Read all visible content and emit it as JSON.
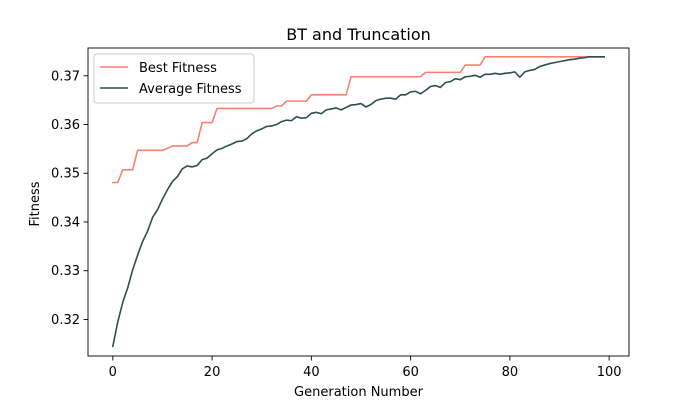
{
  "chart_data": {
    "type": "line",
    "title": "BT and Truncation",
    "xlabel": "Generation Number",
    "ylabel": "Fitness",
    "xlim": [
      -5,
      104
    ],
    "ylim": [
      0.3125,
      0.3757
    ],
    "xticks": [
      0,
      20,
      40,
      60,
      80,
      100
    ],
    "xtick_labels": [
      "0",
      "20",
      "40",
      "60",
      "80",
      "100"
    ],
    "yticks": [
      0.32,
      0.33,
      0.34,
      0.35,
      0.36,
      0.37
    ],
    "ytick_labels": [
      "0.32",
      "0.33",
      "0.34",
      "0.35",
      "0.36",
      "0.37"
    ],
    "grid": false,
    "legend_position": "upper-left",
    "series": [
      {
        "name": "Best Fitness",
        "color": "#fa8072",
        "x": [
          0,
          1,
          2,
          3,
          4,
          5,
          6,
          7,
          8,
          9,
          10,
          11,
          12,
          13,
          14,
          15,
          16,
          17,
          18,
          19,
          20,
          21,
          22,
          23,
          24,
          25,
          26,
          27,
          28,
          29,
          30,
          31,
          32,
          33,
          34,
          35,
          36,
          37,
          38,
          39,
          40,
          41,
          42,
          43,
          44,
          45,
          46,
          47,
          48,
          49,
          50,
          51,
          52,
          53,
          54,
          55,
          56,
          57,
          58,
          59,
          60,
          61,
          62,
          63,
          64,
          65,
          66,
          67,
          68,
          69,
          70,
          71,
          72,
          73,
          74,
          75,
          76,
          77,
          78,
          79,
          80,
          81,
          82,
          83,
          84,
          85,
          86,
          87,
          88,
          89,
          90,
          91,
          92,
          93,
          94,
          95,
          96,
          97,
          98,
          99
        ],
        "values": [
          0.3481,
          0.3481,
          0.3507,
          0.3507,
          0.3507,
          0.3547,
          0.3547,
          0.3547,
          0.3547,
          0.3547,
          0.3547,
          0.3551,
          0.3556,
          0.3556,
          0.3556,
          0.3556,
          0.3563,
          0.3563,
          0.3604,
          0.3604,
          0.3604,
          0.3633,
          0.3633,
          0.3633,
          0.3633,
          0.3633,
          0.3633,
          0.3633,
          0.3633,
          0.3633,
          0.3633,
          0.3633,
          0.3633,
          0.3638,
          0.3638,
          0.3648,
          0.3648,
          0.3648,
          0.3648,
          0.3648,
          0.3661,
          0.3661,
          0.3661,
          0.3661,
          0.3661,
          0.3661,
          0.3661,
          0.3661,
          0.3698,
          0.3698,
          0.3698,
          0.3698,
          0.3698,
          0.3698,
          0.3698,
          0.3698,
          0.3698,
          0.3698,
          0.3698,
          0.3698,
          0.3698,
          0.3698,
          0.3698,
          0.3707,
          0.3707,
          0.3707,
          0.3707,
          0.3707,
          0.3707,
          0.3707,
          0.3707,
          0.3722,
          0.3722,
          0.3722,
          0.3722,
          0.3739,
          0.3739,
          0.3739,
          0.3739,
          0.3739,
          0.3739,
          0.3739,
          0.3739,
          0.3739,
          0.3739,
          0.3739,
          0.3739,
          0.3739,
          0.3739,
          0.3739,
          0.3739,
          0.3739,
          0.3739,
          0.3739,
          0.3739,
          0.3739,
          0.3739,
          0.3739,
          0.3739,
          0.3739
        ]
      },
      {
        "name": "Average Fitness",
        "color": "#2f4f4f",
        "x": [
          0,
          1,
          2,
          3,
          4,
          5,
          6,
          7,
          8,
          9,
          10,
          11,
          12,
          13,
          14,
          15,
          16,
          17,
          18,
          19,
          20,
          21,
          22,
          23,
          24,
          25,
          26,
          27,
          28,
          29,
          30,
          31,
          32,
          33,
          34,
          35,
          36,
          37,
          38,
          39,
          40,
          41,
          42,
          43,
          44,
          45,
          46,
          47,
          48,
          49,
          50,
          51,
          52,
          53,
          54,
          55,
          56,
          57,
          58,
          59,
          60,
          61,
          62,
          63,
          64,
          65,
          66,
          67,
          68,
          69,
          70,
          71,
          72,
          73,
          74,
          75,
          76,
          77,
          78,
          79,
          80,
          81,
          82,
          83,
          84,
          85,
          86,
          87,
          88,
          89,
          90,
          91,
          92,
          93,
          94,
          95,
          96,
          97,
          98,
          99
        ],
        "values": [
          0.3145,
          0.3195,
          0.3235,
          0.3265,
          0.3302,
          0.3332,
          0.336,
          0.3381,
          0.3409,
          0.3425,
          0.3447,
          0.3466,
          0.3483,
          0.3493,
          0.3509,
          0.3515,
          0.3513,
          0.3516,
          0.3528,
          0.3531,
          0.354,
          0.3548,
          0.3551,
          0.3556,
          0.356,
          0.3565,
          0.3566,
          0.3571,
          0.3581,
          0.3587,
          0.3591,
          0.3596,
          0.3597,
          0.36,
          0.3606,
          0.3609,
          0.3608,
          0.3616,
          0.3613,
          0.3614,
          0.3623,
          0.3625,
          0.3622,
          0.363,
          0.3632,
          0.3634,
          0.363,
          0.3635,
          0.364,
          0.3641,
          0.3643,
          0.3636,
          0.3641,
          0.3649,
          0.3652,
          0.3654,
          0.3654,
          0.3652,
          0.3661,
          0.3661,
          0.3667,
          0.3668,
          0.3663,
          0.367,
          0.3678,
          0.368,
          0.3676,
          0.3686,
          0.3688,
          0.3694,
          0.3692,
          0.3698,
          0.3699,
          0.3701,
          0.3697,
          0.3703,
          0.3703,
          0.3705,
          0.3703,
          0.3705,
          0.3706,
          0.3708,
          0.3697,
          0.3708,
          0.3711,
          0.3713,
          0.3719,
          0.3722,
          0.3725,
          0.3727,
          0.3729,
          0.3731,
          0.3733,
          0.3734,
          0.3736,
          0.3737,
          0.3739,
          0.3739,
          0.3739,
          0.3739
        ]
      }
    ]
  }
}
